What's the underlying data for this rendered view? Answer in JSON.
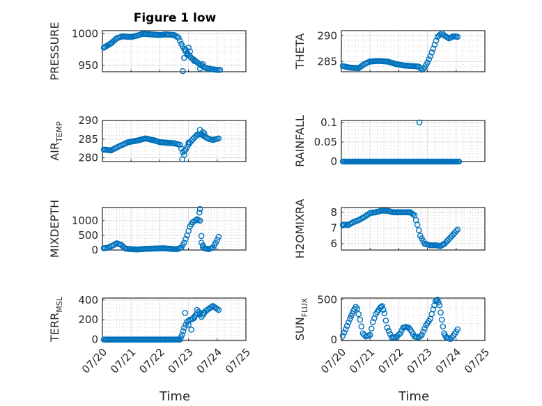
{
  "figure_title": "Figure 1 low",
  "x_axis_label": "Time",
  "x_tick_labels": [
    "07/20",
    "07/21",
    "07/22",
    "07/23",
    "07/24",
    "07/25"
  ],
  "marker_color": "#0072bd",
  "chart_data": [
    {
      "type": "scatter",
      "ylabel": "PRESSURE",
      "ylabel_sub": null,
      "ylim": [
        940,
        1005
      ],
      "yticks": [
        950,
        1000
      ],
      "xlim": [
        0,
        5
      ],
      "grid": true,
      "control": [
        [
          0.05,
          978
        ],
        [
          0.3,
          985
        ],
        [
          0.5,
          993
        ],
        [
          0.7,
          996
        ],
        [
          1.0,
          995
        ],
        [
          1.2,
          997
        ],
        [
          1.4,
          1000
        ],
        [
          1.7,
          999
        ],
        [
          2.0,
          998
        ],
        [
          2.2,
          999
        ],
        [
          2.5,
          998
        ],
        [
          2.65,
          994
        ],
        [
          2.75,
          984
        ],
        [
          2.9,
          972
        ],
        [
          3.1,
          962
        ],
        [
          3.3,
          955
        ],
        [
          3.45,
          950
        ],
        [
          3.6,
          946
        ],
        [
          3.8,
          944
        ],
        [
          4.0,
          943
        ],
        [
          4.1,
          943
        ]
      ],
      "extra": [
        [
          2.8,
          941
        ],
        [
          2.85,
          962
        ],
        [
          2.9,
          975
        ],
        [
          2.95,
          967
        ],
        [
          3.0,
          978
        ],
        [
          3.05,
          972
        ],
        [
          3.15,
          960
        ],
        [
          3.2,
          957
        ],
        [
          3.4,
          945
        ],
        [
          3.5,
          952
        ]
      ]
    },
    {
      "type": "scatter",
      "ylabel": "THETA",
      "ylabel_sub": null,
      "ylim": [
        283,
        291
      ],
      "yticks": [
        285,
        290
      ],
      "xlim": [
        0,
        5
      ],
      "grid": true,
      "control": [
        [
          0.05,
          284.1
        ],
        [
          0.3,
          283.8
        ],
        [
          0.6,
          283.7
        ],
        [
          0.8,
          284.5
        ],
        [
          1.0,
          285.0
        ],
        [
          1.3,
          285.1
        ],
        [
          1.6,
          285.0
        ],
        [
          1.9,
          284.5
        ],
        [
          2.2,
          284.2
        ],
        [
          2.5,
          284.1
        ],
        [
          2.7,
          284.0
        ],
        [
          2.8,
          283.4
        ],
        [
          2.9,
          283.8
        ],
        [
          3.0,
          284.8
        ],
        [
          3.1,
          286.0
        ],
        [
          3.2,
          287.5
        ],
        [
          3.35,
          289.8
        ],
        [
          3.5,
          290.5
        ],
        [
          3.6,
          290.0
        ],
        [
          3.75,
          289.5
        ],
        [
          3.9,
          289.9
        ],
        [
          4.05,
          289.8
        ]
      ],
      "extra": []
    },
    {
      "type": "scatter",
      "ylabel": "AIR",
      "ylabel_sub": "TEMP",
      "ylim": [
        279,
        290
      ],
      "yticks": [
        280,
        285,
        290
      ],
      "xlim": [
        0,
        5
      ],
      "grid": true,
      "control": [
        [
          0.05,
          282.2
        ],
        [
          0.3,
          282.0
        ],
        [
          0.5,
          282.8
        ],
        [
          0.7,
          283.5
        ],
        [
          0.9,
          284.2
        ],
        [
          1.2,
          284.6
        ],
        [
          1.5,
          285.2
        ],
        [
          1.8,
          284.7
        ],
        [
          2.0,
          284.2
        ],
        [
          2.3,
          284.0
        ],
        [
          2.5,
          283.9
        ],
        [
          2.7,
          283.5
        ],
        [
          2.8,
          281.5
        ],
        [
          2.9,
          282.2
        ],
        [
          3.0,
          283.6
        ],
        [
          3.15,
          285.0
        ],
        [
          3.3,
          286.2
        ],
        [
          3.45,
          286.3
        ],
        [
          3.6,
          285.5
        ],
        [
          3.7,
          285.1
        ],
        [
          3.85,
          284.8
        ],
        [
          4.05,
          285.2
        ]
      ],
      "extra": [
        [
          2.78,
          279.6
        ],
        [
          2.85,
          280.8
        ],
        [
          3.0,
          284.1
        ],
        [
          3.4,
          287.5
        ],
        [
          3.5,
          286.9
        ],
        [
          3.55,
          286.5
        ]
      ]
    },
    {
      "type": "scatter",
      "ylabel": "RAINFALL",
      "ylabel_sub": null,
      "ylim": [
        0,
        0.105
      ],
      "yticks": [
        0,
        0.05,
        0.1
      ],
      "xlim": [
        0,
        5
      ],
      "grid": true,
      "control": [
        [
          0.05,
          0
        ],
        [
          4.1,
          0
        ]
      ],
      "extra": [
        [
          2.72,
          0.1
        ]
      ]
    },
    {
      "type": "scatter",
      "ylabel": "MIXDEPTH",
      "ylabel_sub": null,
      "ylim": [
        0,
        1450
      ],
      "yticks": [
        0,
        500,
        1000
      ],
      "xlim": [
        0,
        5
      ],
      "grid": true,
      "control": [
        [
          0.05,
          60
        ],
        [
          0.2,
          80
        ],
        [
          0.35,
          150
        ],
        [
          0.5,
          230
        ],
        [
          0.65,
          180
        ],
        [
          0.8,
          50
        ],
        [
          1.0,
          30
        ],
        [
          1.2,
          20
        ],
        [
          1.5,
          40
        ],
        [
          1.8,
          50
        ],
        [
          2.1,
          60
        ],
        [
          2.4,
          40
        ],
        [
          2.6,
          30
        ],
        [
          2.75,
          80
        ],
        [
          2.85,
          250
        ],
        [
          2.95,
          500
        ],
        [
          3.05,
          800
        ],
        [
          3.15,
          950
        ],
        [
          3.3,
          1050
        ],
        [
          3.4,
          1000
        ],
        [
          3.45,
          250
        ],
        [
          3.55,
          60
        ],
        [
          3.7,
          30
        ],
        [
          3.85,
          80
        ],
        [
          3.95,
          250
        ],
        [
          4.05,
          450
        ]
      ],
      "extra": [
        [
          3.4,
          1400
        ],
        [
          3.38,
          1280
        ],
        [
          3.45,
          480
        ],
        [
          3.5,
          100
        ]
      ]
    },
    {
      "type": "scatter",
      "ylabel": "H2OMIXRA",
      "ylabel_sub": null,
      "ylim": [
        5.6,
        8.3
      ],
      "yticks": [
        6,
        7,
        8
      ],
      "xlim": [
        0,
        5
      ],
      "grid": true,
      "control": [
        [
          0.05,
          7.2
        ],
        [
          0.25,
          7.2
        ],
        [
          0.45,
          7.4
        ],
        [
          0.6,
          7.5
        ],
        [
          0.8,
          7.7
        ],
        [
          1.0,
          7.95
        ],
        [
          1.2,
          8.0
        ],
        [
          1.4,
          8.1
        ],
        [
          1.6,
          8.1
        ],
        [
          1.8,
          8.0
        ],
        [
          2.1,
          8.0
        ],
        [
          2.4,
          8.0
        ],
        [
          2.55,
          7.8
        ],
        [
          2.65,
          7.2
        ],
        [
          2.75,
          6.5
        ],
        [
          2.9,
          6.0
        ],
        [
          3.1,
          5.9
        ],
        [
          3.3,
          5.9
        ],
        [
          3.45,
          5.85
        ],
        [
          3.6,
          6.0
        ],
        [
          3.75,
          6.3
        ],
        [
          3.9,
          6.6
        ],
        [
          4.05,
          6.9
        ]
      ],
      "extra": []
    },
    {
      "type": "scatter",
      "ylabel": "TERR",
      "ylabel_sub": "MSL",
      "ylim": [
        -10,
        420
      ],
      "yticks": [
        0,
        200,
        400
      ],
      "xlim": [
        0,
        5
      ],
      "grid": true,
      "control": [
        [
          0.05,
          0
        ],
        [
          2.7,
          0
        ],
        [
          2.78,
          50
        ],
        [
          2.85,
          120
        ],
        [
          2.95,
          180
        ],
        [
          3.05,
          200
        ],
        [
          3.15,
          210
        ],
        [
          3.25,
          250
        ],
        [
          3.35,
          280
        ],
        [
          3.45,
          230
        ],
        [
          3.6,
          290
        ],
        [
          3.75,
          320
        ],
        [
          3.85,
          340
        ],
        [
          3.95,
          320
        ],
        [
          4.05,
          300
        ]
      ],
      "extra": [
        [
          2.88,
          270
        ],
        [
          3.0,
          150
        ],
        [
          3.1,
          100
        ],
        [
          3.2,
          220
        ],
        [
          3.3,
          300
        ],
        [
          3.4,
          260
        ],
        [
          3.5,
          270
        ]
      ]
    },
    {
      "type": "scatter",
      "ylabel": "SUN",
      "ylabel_sub": "FLUX",
      "ylim": [
        -10,
        520
      ],
      "yticks": [
        0,
        500
      ],
      "xlim": [
        0,
        5
      ],
      "grid": true,
      "control": [
        [
          0.05,
          50
        ],
        [
          0.15,
          130
        ],
        [
          0.3,
          260
        ],
        [
          0.42,
          360
        ],
        [
          0.5,
          410
        ],
        [
          0.55,
          390
        ],
        [
          0.65,
          250
        ],
        [
          0.75,
          80
        ],
        [
          0.85,
          40
        ],
        [
          1.0,
          60
        ],
        [
          1.1,
          220
        ],
        [
          1.2,
          320
        ],
        [
          1.35,
          400
        ],
        [
          1.42,
          420
        ],
        [
          1.5,
          330
        ],
        [
          1.6,
          150
        ],
        [
          1.75,
          30
        ],
        [
          1.9,
          30
        ],
        [
          2.05,
          80
        ],
        [
          2.15,
          150
        ],
        [
          2.25,
          160
        ],
        [
          2.35,
          150
        ],
        [
          2.45,
          100
        ],
        [
          2.55,
          40
        ],
        [
          2.7,
          30
        ],
        [
          2.8,
          60
        ],
        [
          2.95,
          180
        ],
        [
          3.1,
          260
        ],
        [
          3.2,
          380
        ],
        [
          3.28,
          480
        ],
        [
          3.35,
          500
        ],
        [
          3.42,
          430
        ],
        [
          3.5,
          250
        ],
        [
          3.58,
          80
        ],
        [
          3.65,
          30
        ],
        [
          3.8,
          10
        ],
        [
          3.9,
          50
        ],
        [
          4.0,
          100
        ],
        [
          4.05,
          130
        ]
      ],
      "extra": []
    }
  ]
}
